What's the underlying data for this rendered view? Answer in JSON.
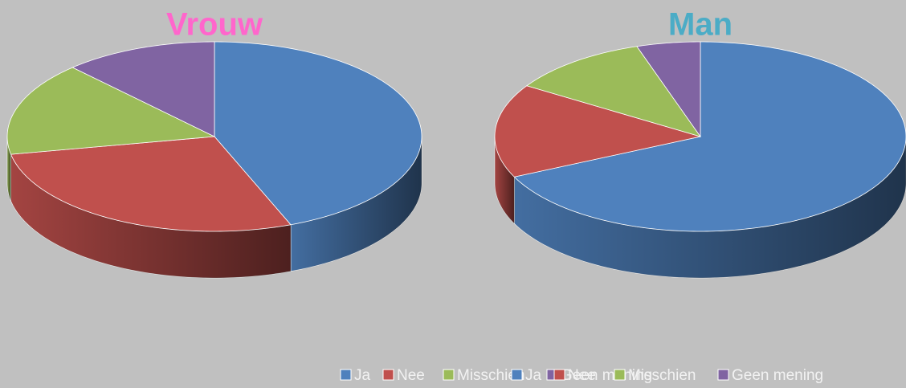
{
  "chart_data": [
    {
      "type": "pie",
      "title": "Vrouw",
      "title_color": "#ff66cc",
      "categories": [
        "Ja",
        "Nee",
        "Misschien",
        "Geen mening"
      ],
      "values": [
        44,
        28,
        16,
        12
      ],
      "colors": [
        "#4f81bd",
        "#c0504d",
        "#9bbb59",
        "#8064a2"
      ],
      "legend": "bottom"
    },
    {
      "type": "pie",
      "title": "Man",
      "title_color": "#4bacc6",
      "categories": [
        "Ja",
        "Nee",
        "Misschien",
        "Geen mening"
      ],
      "values": [
        68,
        16,
        11,
        5
      ],
      "colors": [
        "#4f81bd",
        "#c0504d",
        "#9bbb59",
        "#8064a2"
      ],
      "legend": "bottom"
    }
  ]
}
